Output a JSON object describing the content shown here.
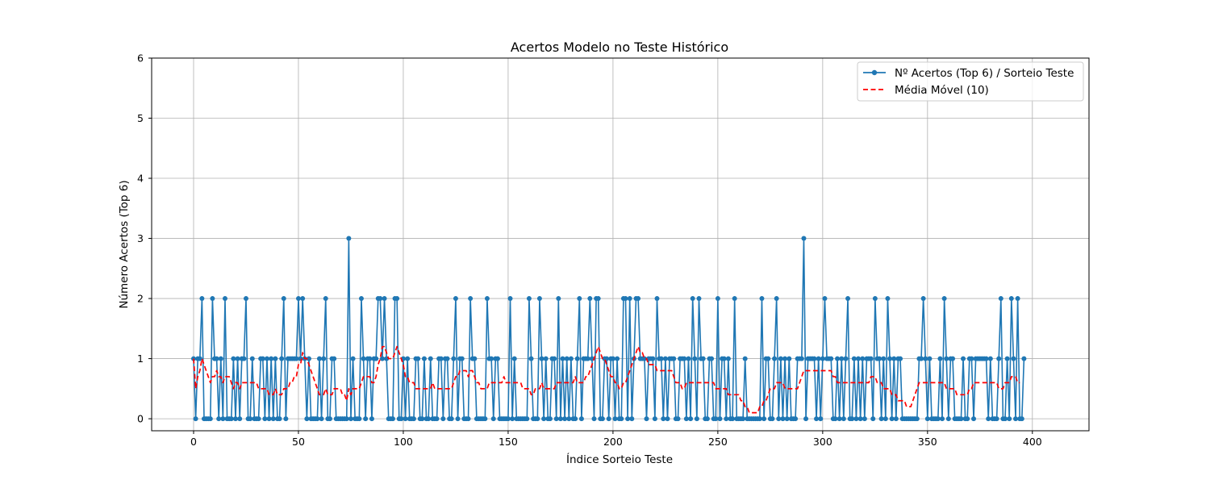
{
  "chart_data": {
    "type": "line",
    "title": "Acertos Modelo no Teste Histórico",
    "xlabel": "Índice Sorteio Teste",
    "ylabel": "Número Acertos (Top 6)",
    "xlim": [
      -20,
      427
    ],
    "ylim": [
      -0.2,
      6
    ],
    "xticks": [
      0,
      50,
      100,
      150,
      200,
      250,
      300,
      350,
      400
    ],
    "yticks": [
      0,
      1,
      2,
      3,
      4,
      5,
      6
    ],
    "grid": true,
    "legend_position": "top-right",
    "series": [
      {
        "name": "Nº Acertos (Top 6) / Sorteio Teste",
        "color": "#1f77b4",
        "style": "solid-with-markers",
        "values": [
          1,
          0,
          1,
          1,
          2,
          0,
          0,
          0,
          0,
          2,
          1,
          1,
          0,
          1,
          0,
          2,
          0,
          0,
          0,
          1,
          0,
          1,
          0,
          1,
          1,
          2,
          0,
          0,
          1,
          0,
          0,
          0,
          1,
          1,
          0,
          1,
          0,
          1,
          0,
          1,
          0,
          0,
          1,
          2,
          0,
          1,
          1,
          1,
          1,
          1,
          2,
          1,
          2,
          1,
          0,
          1,
          0,
          0,
          0,
          0,
          1,
          0,
          1,
          2,
          0,
          0,
          1,
          1,
          0,
          0,
          0,
          0,
          0,
          0,
          3,
          0,
          1,
          0,
          0,
          0,
          2,
          1,
          0,
          1,
          1,
          0,
          1,
          1,
          2,
          2,
          1,
          2,
          1,
          0,
          0,
          0,
          2,
          2,
          0,
          0,
          1,
          0,
          1,
          0,
          0,
          0,
          1,
          1,
          0,
          0,
          1,
          0,
          0,
          1,
          0,
          0,
          0,
          1,
          1,
          0,
          1,
          1,
          0,
          0,
          1,
          2,
          0,
          1,
          1,
          0,
          0,
          0,
          2,
          1,
          1,
          0,
          0,
          0,
          0,
          0,
          2,
          1,
          1,
          0,
          1,
          1,
          0,
          0,
          0,
          0,
          0,
          2,
          0,
          1,
          0,
          0,
          0,
          0,
          0,
          0,
          2,
          1,
          0,
          0,
          0,
          2,
          1,
          0,
          1,
          0,
          0,
          1,
          1,
          0,
          2,
          0,
          1,
          0,
          1,
          0,
          1,
          0,
          0,
          1,
          2,
          0,
          1,
          1,
          1,
          2,
          1,
          0,
          2,
          2,
          0,
          0,
          1,
          1,
          0,
          1,
          1,
          0,
          1,
          0,
          0,
          2,
          2,
          0,
          2,
          0,
          1,
          2,
          2,
          1,
          1,
          1,
          0,
          1,
          1,
          1,
          0,
          2,
          1,
          1,
          0,
          1,
          0,
          1,
          1,
          1,
          0,
          0,
          1,
          1,
          1,
          0,
          1,
          0,
          2,
          1,
          0,
          2,
          1,
          1,
          0,
          0,
          1,
          1,
          0,
          0,
          2,
          0,
          1,
          1,
          0,
          1,
          0,
          0,
          2,
          0,
          0,
          0,
          0,
          1,
          0,
          0,
          0,
          0,
          0,
          0,
          0,
          2,
          0,
          1,
          1,
          0,
          0,
          1,
          2,
          0,
          1,
          0,
          1,
          0,
          1,
          0,
          0,
          0,
          1,
          1,
          1,
          3,
          0,
          1,
          1,
          1,
          1,
          0,
          1,
          0,
          1,
          2,
          1,
          1,
          1,
          0,
          0,
          1,
          0,
          1,
          0,
          1,
          2,
          0,
          0,
          1,
          0,
          1,
          0,
          1,
          0,
          1,
          1,
          1,
          0,
          2,
          1,
          1,
          0,
          1,
          0,
          2,
          1,
          0,
          1,
          0,
          1,
          1,
          0,
          0,
          0,
          0,
          0,
          0,
          0,
          0,
          1,
          1,
          2,
          1,
          0,
          1,
          0,
          0,
          0,
          0,
          1,
          0,
          2,
          1,
          0,
          1,
          1,
          0,
          0,
          0,
          0,
          1,
          0,
          0,
          1,
          1,
          0,
          1,
          1,
          1,
          1,
          1,
          1,
          0,
          1,
          0,
          0,
          0,
          1,
          2,
          0,
          0,
          1,
          0,
          2,
          1,
          0,
          2,
          0,
          0,
          1
        ]
      },
      {
        "name": "Média Móvel (10)",
        "color": "#ff0000",
        "style": "dashed",
        "values": [
          1,
          0.5,
          0.7,
          0.8,
          1,
          0.9,
          0.8,
          0.7,
          0.6,
          0.7,
          0.7,
          0.8,
          0.7,
          0.7,
          0.6,
          0.7,
          0.7,
          0.7,
          0.6,
          0.5,
          0.6,
          0.6,
          0.5,
          0.6,
          0.6,
          0.6,
          0.6,
          0.6,
          0.6,
          0.6,
          0.6,
          0.5,
          0.5,
          0.5,
          0.5,
          0.5,
          0.4,
          0.4,
          0.4,
          0.5,
          0.4,
          0.4,
          0.4,
          0.5,
          0.5,
          0.5,
          0.6,
          0.6,
          0.7,
          0.7,
          0.9,
          0.9,
          1.1,
          1.0,
          1.0,
          0.9,
          0.8,
          0.7,
          0.6,
          0.5,
          0.4,
          0.4,
          0.4,
          0.5,
          0.4,
          0.4,
          0.4,
          0.5,
          0.5,
          0.5,
          0.5,
          0.4,
          0.4,
          0.3,
          0.5,
          0.4,
          0.5,
          0.5,
          0.5,
          0.5,
          0.6,
          0.7,
          0.7,
          0.7,
          0.7,
          0.6,
          0.6,
          0.7,
          0.9,
          1.0,
          1.2,
          1.2,
          1.1,
          1.0,
          1.0,
          1.0,
          1.1,
          1.2,
          1.1,
          1.0,
          0.9,
          0.7,
          0.7,
          0.6,
          0.6,
          0.6,
          0.5,
          0.5,
          0.5,
          0.5,
          0.5,
          0.5,
          0.5,
          0.5,
          0.6,
          0.5,
          0.5,
          0.5,
          0.5,
          0.5,
          0.5,
          0.5,
          0.5,
          0.5,
          0.6,
          0.7,
          0.7,
          0.8,
          0.8,
          0.8,
          0.8,
          0.7,
          0.8,
          0.8,
          0.7,
          0.6,
          0.6,
          0.5,
          0.5,
          0.5,
          0.5,
          0.6,
          0.6,
          0.6,
          0.6,
          0.6,
          0.6,
          0.6,
          0.7,
          0.6,
          0.6,
          0.6,
          0.6,
          0.6,
          0.6,
          0.6,
          0.6,
          0.5,
          0.5,
          0.5,
          0.5,
          0.4,
          0.4,
          0.5,
          0.5,
          0.5,
          0.6,
          0.5,
          0.5,
          0.5,
          0.5,
          0.5,
          0.5,
          0.6,
          0.6,
          0.6,
          0.6,
          0.6,
          0.6,
          0.6,
          0.6,
          0.6,
          0.7,
          0.6,
          0.6,
          0.6,
          0.6,
          0.7,
          0.7,
          0.8,
          0.9,
          1.0,
          1.1,
          1.2,
          1.1,
          1.0,
          1.0,
          0.9,
          0.8,
          0.7,
          0.7,
          0.6,
          0.6,
          0.5,
          0.5,
          0.6,
          0.6,
          0.7,
          0.8,
          0.9,
          1.0,
          1.1,
          1.2,
          1.1,
          1.1,
          1.0,
          1.0,
          0.9,
          0.9,
          0.9,
          0.9,
          0.8,
          0.8,
          0.8,
          0.8,
          0.8,
          0.8,
          0.8,
          0.8,
          0.7,
          0.6,
          0.6,
          0.6,
          0.5,
          0.5,
          0.6,
          0.6,
          0.6,
          0.6,
          0.6,
          0.6,
          0.6,
          0.6,
          0.6,
          0.6,
          0.6,
          0.6,
          0.6,
          0.6,
          0.5,
          0.5,
          0.5,
          0.5,
          0.5,
          0.5,
          0.4,
          0.4,
          0.4,
          0.4,
          0.4,
          0.4,
          0.3,
          0.3,
          0.2,
          0.2,
          0.1,
          0.1,
          0.1,
          0.1,
          0.1,
          0.2,
          0.2,
          0.3,
          0.3,
          0.4,
          0.5,
          0.5,
          0.5,
          0.6,
          0.6,
          0.6,
          0.6,
          0.5,
          0.5,
          0.5,
          0.5,
          0.5,
          0.5,
          0.5,
          0.6,
          0.7,
          0.8,
          0.8,
          0.8,
          0.8,
          0.8,
          0.8,
          0.8,
          0.8,
          0.8,
          0.8,
          0.8,
          0.8,
          0.8,
          0.8,
          0.7,
          0.7,
          0.6,
          0.6,
          0.6,
          0.6,
          0.6,
          0.6,
          0.6,
          0.6,
          0.6,
          0.6,
          0.6,
          0.6,
          0.6,
          0.6,
          0.6,
          0.6,
          0.7,
          0.7,
          0.7,
          0.6,
          0.6,
          0.6,
          0.5,
          0.5,
          0.5,
          0.5,
          0.4,
          0.4,
          0.4,
          0.3,
          0.3,
          0.3,
          0.3,
          0.2,
          0.2,
          0.2,
          0.3,
          0.4,
          0.5,
          0.6,
          0.6,
          0.6,
          0.6,
          0.6,
          0.6,
          0.6,
          0.6,
          0.6,
          0.6,
          0.6,
          0.6,
          0.6,
          0.5,
          0.5,
          0.5,
          0.5,
          0.5,
          0.4,
          0.4,
          0.4,
          0.4,
          0.4,
          0.4,
          0.5,
          0.5,
          0.6,
          0.6,
          0.6,
          0.6,
          0.6,
          0.6,
          0.6,
          0.6,
          0.6,
          0.6,
          0.6,
          0.6,
          0.5,
          0.5,
          0.5,
          0.6,
          0.6,
          0.6,
          0.7,
          0.7,
          0.7,
          0.6,
          0.6
        ]
      }
    ]
  }
}
